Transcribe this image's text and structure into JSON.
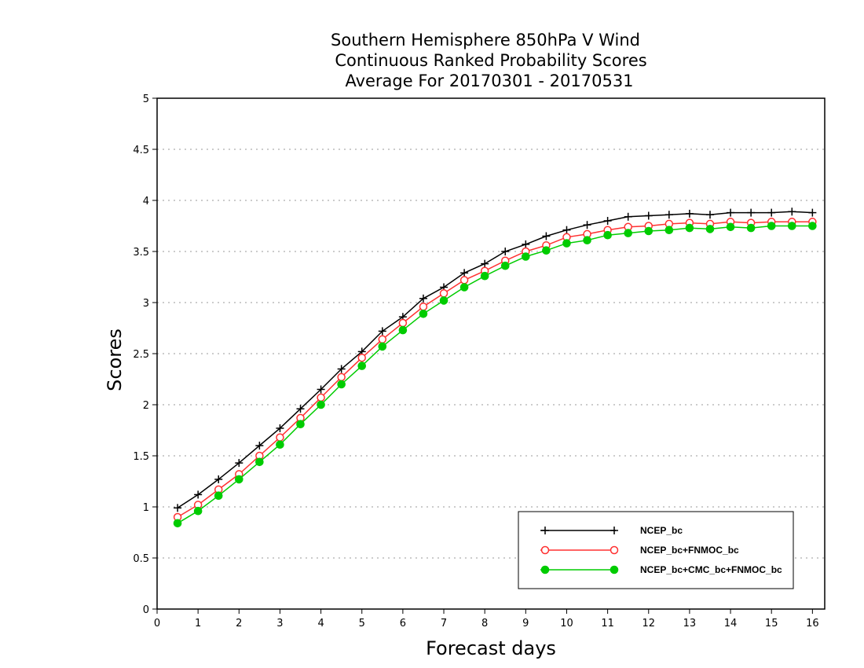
{
  "chart_data": {
    "type": "line",
    "title_lines": [
      "Southern Hemisphere 850hPa V Wind",
      "Continuous Ranked Probability Scores",
      "Average For 20170301 - 20170531"
    ],
    "xlabel": "Forecast days",
    "ylabel": "Scores",
    "xlim": [
      0,
      16.3
    ],
    "ylim": [
      0,
      5
    ],
    "x_ticks": [
      0,
      1,
      2,
      3,
      4,
      5,
      6,
      7,
      8,
      9,
      10,
      11,
      12,
      13,
      14,
      15,
      16
    ],
    "y_ticks": [
      0,
      0.5,
      1,
      1.5,
      2,
      2.5,
      3,
      3.5,
      4,
      4.5,
      5
    ],
    "y_tick_labels": [
      "0",
      "0.5",
      "1",
      "1.5",
      "2",
      "2.5",
      "3",
      "3.5",
      "4",
      "4.5",
      "5"
    ],
    "grid": "horizontal dotted",
    "legend_position": "bottom-right",
    "x": [
      0.5,
      1,
      1.5,
      2,
      2.5,
      3,
      3.5,
      4,
      4.5,
      5,
      5.5,
      6,
      6.5,
      7,
      7.5,
      8,
      8.5,
      9,
      9.5,
      10,
      10.5,
      11,
      11.5,
      12,
      12.5,
      13,
      13.5,
      14,
      14.5,
      15,
      15.5,
      16
    ],
    "series": [
      {
        "name": "NCEP_bc",
        "color": "#000000",
        "marker": "plus",
        "values": [
          0.99,
          1.12,
          1.27,
          1.43,
          1.6,
          1.77,
          1.96,
          2.15,
          2.35,
          2.52,
          2.72,
          2.86,
          3.04,
          3.15,
          3.29,
          3.38,
          3.5,
          3.57,
          3.65,
          3.71,
          3.76,
          3.8,
          3.84,
          3.85,
          3.86,
          3.87,
          3.86,
          3.88,
          3.88,
          3.88,
          3.89,
          3.88
        ]
      },
      {
        "name": "NCEP_bc+FNMOC_bc",
        "color": "#ff3030",
        "marker": "open-circle",
        "values": [
          0.9,
          1.02,
          1.17,
          1.32,
          1.5,
          1.68,
          1.87,
          2.07,
          2.27,
          2.46,
          2.64,
          2.8,
          2.96,
          3.09,
          3.22,
          3.31,
          3.41,
          3.5,
          3.56,
          3.64,
          3.67,
          3.71,
          3.74,
          3.75,
          3.77,
          3.78,
          3.77,
          3.79,
          3.78,
          3.79,
          3.79,
          3.79
        ]
      },
      {
        "name": "NCEP_bc+CMC_bc+FNMOC_bc",
        "color": "#00cc00",
        "marker": "filled-circle",
        "values": [
          0.84,
          0.96,
          1.11,
          1.27,
          1.44,
          1.61,
          1.81,
          2.0,
          2.2,
          2.38,
          2.57,
          2.73,
          2.89,
          3.02,
          3.15,
          3.26,
          3.36,
          3.45,
          3.51,
          3.58,
          3.61,
          3.66,
          3.68,
          3.7,
          3.71,
          3.73,
          3.72,
          3.74,
          3.73,
          3.75,
          3.75,
          3.75
        ]
      }
    ]
  }
}
